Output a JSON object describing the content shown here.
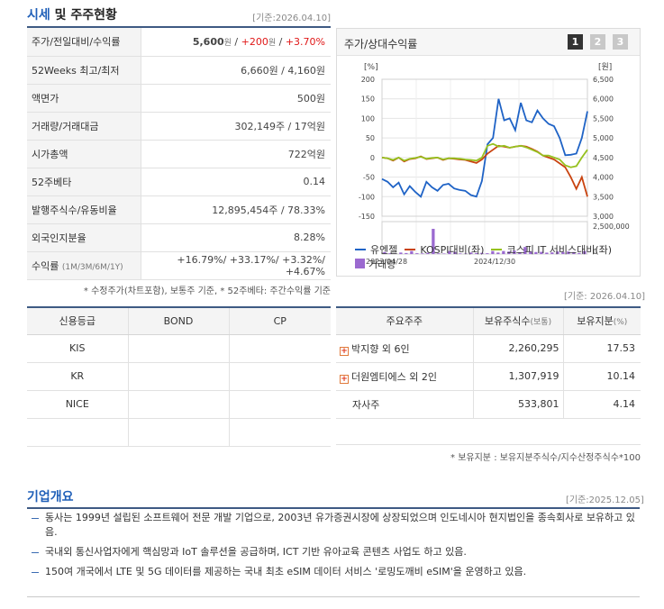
{
  "header": {
    "title_blue": "시세",
    "title_rest": " 및 주주현황",
    "date": "[기준:2026.04.10]"
  },
  "market": {
    "price": {
      "label": "주가/전일대비/수익률",
      "value": "5,600",
      "unit": "원",
      "sep1": " / ",
      "change": "+200",
      "sep2": " / ",
      "pct": "+3.70%"
    },
    "rows": [
      {
        "label": "52Weeks 최고/최저",
        "value": "6,660원 / 4,160원"
      },
      {
        "label": "액면가",
        "value": "500원"
      },
      {
        "label": "거래량/거래대금",
        "value": "302,149주 / 17억원"
      },
      {
        "label": "시가총액",
        "value": "722억원"
      },
      {
        "label": "52주베타",
        "value": "0.14"
      },
      {
        "label": "발행주식수/유동비율",
        "value": "12,895,454주 / 78.33%"
      },
      {
        "label": "외국인지분율",
        "value": "8.28%"
      }
    ],
    "returns": {
      "label": "수익률",
      "sub": "(1M/3M/6M/1Y)",
      "value": "+16.79%/ +33.17%/ +3.32%/ +4.67%"
    },
    "footnote": "* 수정주가(차트포함), 보통주 기준, * 52주베타: 주간수익률 기준"
  },
  "chart_panel": {
    "title": "주가/상대수익률",
    "tabs": [
      "1",
      "2",
      "3"
    ],
    "date2": "[기준: 2026.04.10]"
  },
  "chart_data": {
    "type": "line",
    "left_unit": "[%]",
    "right_unit": "[원]",
    "left_ticks": [
      "200",
      "150",
      "100",
      "50",
      "0",
      "-50",
      "-100",
      "-150"
    ],
    "right_ticks": [
      "6,500",
      "6,000",
      "5,500",
      "5,000",
      "4,500",
      "4,000",
      "3,500",
      "3,000"
    ],
    "volume_tick": "2,500,000",
    "volume_tick_zero": "0",
    "x_labels": [
      "2023/04/28",
      "2024/12/30"
    ],
    "ylim_pct": [
      -150,
      200
    ],
    "ylim_price": [
      3000,
      6500
    ],
    "grid": true,
    "legend_position": "bottom",
    "series": [
      {
        "name": "유엔젤",
        "axis": "right",
        "color": "#1f63c6",
        "values": [
          3950,
          3880,
          3740,
          3860,
          3560,
          3770,
          3620,
          3500,
          3880,
          3740,
          3650,
          3800,
          3830,
          3710,
          3670,
          3650,
          3540,
          3500,
          3900,
          4840,
          5000,
          6000,
          5450,
          5500,
          5200,
          5900,
          5450,
          5400,
          5700,
          5500,
          5360,
          5300,
          5000,
          4560,
          4570,
          4600,
          5000,
          5680
        ]
      },
      {
        "name": "KOSPI대비(좌)",
        "axis": "left",
        "color": "#c9430f",
        "values": [
          0,
          -2,
          -8,
          0,
          -10,
          -4,
          -2,
          3,
          -4,
          -2,
          0,
          -6,
          -2,
          -3,
          -5,
          -6,
          -10,
          -14,
          -5,
          10,
          20,
          30,
          28,
          25,
          28,
          30,
          28,
          22,
          15,
          5,
          0,
          -5,
          -15,
          -25,
          -50,
          -80,
          -50,
          -100
        ]
      },
      {
        "name": "코스피 IT 서비스대비(좌)",
        "axis": "left",
        "color": "#96c11f",
        "values": [
          0,
          -2,
          -6,
          0,
          -8,
          -3,
          -1,
          2,
          -3,
          -1,
          0,
          -5,
          -2,
          -2,
          -3,
          -5,
          -6,
          -8,
          0,
          30,
          35,
          28,
          30,
          25,
          28,
          30,
          26,
          20,
          14,
          5,
          5,
          0,
          -5,
          -20,
          -25,
          -22,
          0,
          20
        ]
      },
      {
        "name": "거래량",
        "axis": "volume",
        "color": "#9b6ad0",
        "values": [
          200000,
          80000,
          60000,
          150000,
          100000,
          300000,
          80000,
          60000,
          120000,
          2500000,
          70000,
          50000,
          300000,
          200000,
          60000,
          50000,
          150000,
          100000,
          120000,
          80000,
          300000,
          150000,
          300000,
          250000,
          350000,
          180000,
          700000,
          250000,
          200000,
          220000,
          140000,
          160000,
          260000,
          200000,
          250000,
          200000,
          100000,
          300000
        ]
      }
    ]
  },
  "credit": {
    "headers": [
      "신용등급",
      "BOND",
      "CP"
    ],
    "rows": [
      {
        "agency": "KIS",
        "bond": "",
        "cp": ""
      },
      {
        "agency": "KR",
        "bond": "",
        "cp": ""
      },
      {
        "agency": "NICE",
        "bond": "",
        "cp": ""
      }
    ]
  },
  "holders": {
    "headers": {
      "name": "주요주주",
      "shares": "보유주식수",
      "shares_unit": "(보통)",
      "ratio": "보유지분",
      "ratio_unit": "(%)"
    },
    "rows": [
      {
        "name": "박지향 외 6인",
        "shares": "2,260,295",
        "ratio": "17.53",
        "expandable": true
      },
      {
        "name": "더원엠티에스 외 2인",
        "shares": "1,307,919",
        "ratio": "10.14",
        "expandable": true
      },
      {
        "name": "자사주",
        "shares": "533,801",
        "ratio": "4.14",
        "expandable": false
      }
    ],
    "footnote": "* 보유지분 : 보유지분주식수/지수산정주식수*100"
  },
  "overview": {
    "title": "기업개요",
    "date": "[기준:2025.12.05]",
    "items": [
      "동사는 1999년 설립된 소프트웨어 전문 개발 기업으로, 2003년 유가증권시장에 상장되었으며 인도네시아 현지법인을 종속회사로 보유하고 있음.",
      "국내외 통신사업자에게 핵심망과 IoT 솔루션을 공급하며, ICT 기반 유아교육 콘텐츠 사업도 하고 있음.",
      "150여 개국에서 LTE 및 5G 데이터를 제공하는 국내 최초 eSIM 데이터 서비스 '로밍도깨비 eSIM'을 운영하고 있음."
    ]
  }
}
